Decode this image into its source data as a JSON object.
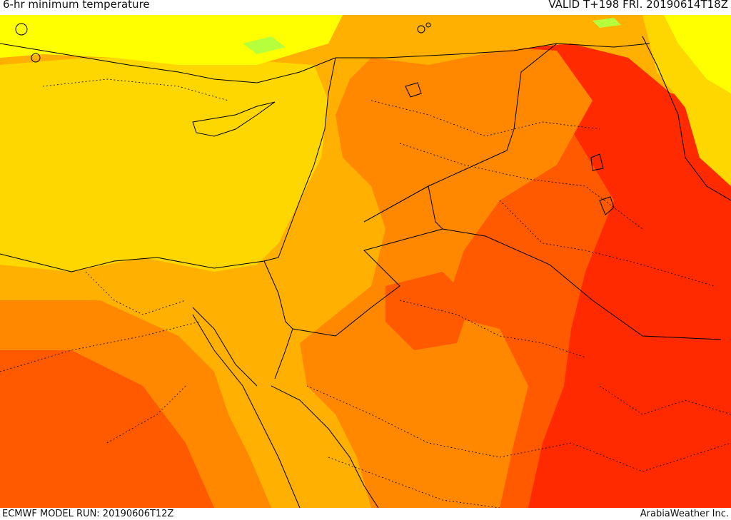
{
  "header": {
    "title": "6-hr minimum temperature",
    "valid": "VALID T+198 FRI. 20190614T18Z"
  },
  "footer": {
    "model_run": "ECMWF MODEL RUN: 20190606T12Z",
    "credit": "ArabiaWeather Inc."
  },
  "map": {
    "colors": {
      "band_1": "#ffff00",
      "band_2": "#ffd700",
      "band_3": "#ffb000",
      "band_4": "#ff8800",
      "band_5": "#ff5a00",
      "band_6": "#ff2a00",
      "accent_green": "#b6ff3d"
    }
  }
}
